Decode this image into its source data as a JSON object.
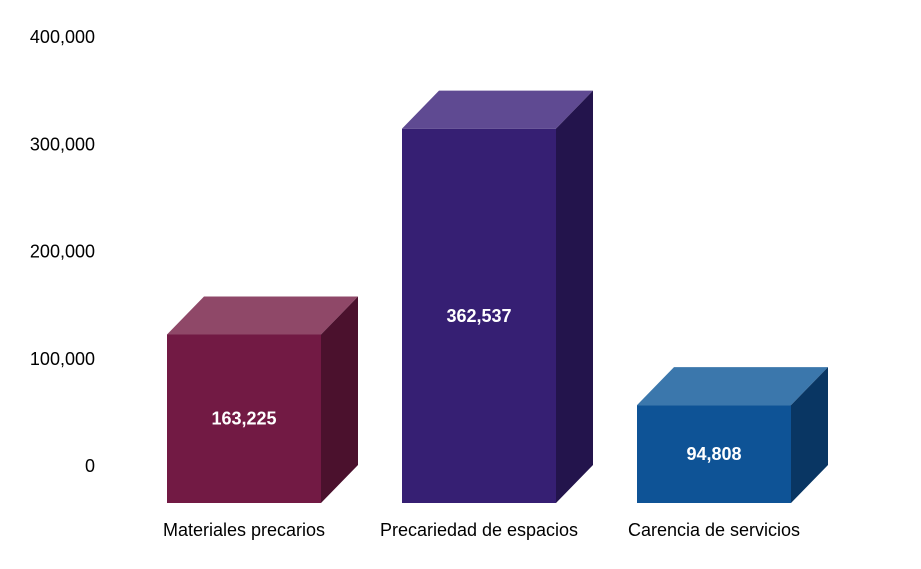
{
  "chart_data": {
    "type": "bar",
    "style": "3d-column",
    "categories": [
      "Materiales precarios",
      "Precariedad de espacios",
      "Carencia de servicios"
    ],
    "values": [
      163225,
      362537,
      94808
    ],
    "value_labels": [
      "163,225",
      "362,537",
      "94,808"
    ],
    "y_ticks": [
      "0",
      "100,000",
      "200,000",
      "300,000",
      "400,000"
    ],
    "ylim": [
      0,
      400000
    ],
    "grid": false,
    "legend": "none",
    "colors": [
      {
        "front": "#721A44",
        "top": "#8F4868",
        "side": "#4B112D"
      },
      {
        "front": "#361F73",
        "top": "#5F4A92",
        "side": "#23144C"
      },
      {
        "front": "#0E5396",
        "top": "#3B77AC",
        "side": "#093663"
      }
    ]
  }
}
